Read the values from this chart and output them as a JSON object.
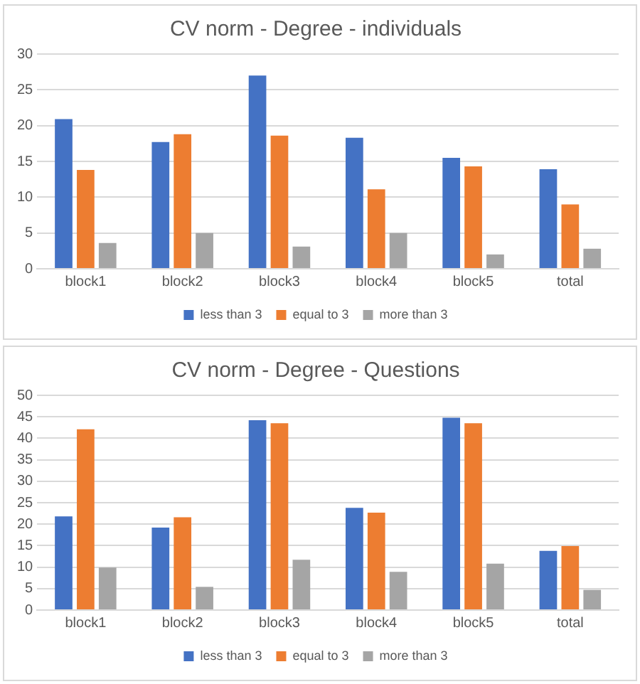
{
  "chart_data": [
    {
      "type": "bar",
      "title": "CV norm - Degree - individuals",
      "categories": [
        "block1",
        "block2",
        "block3",
        "block4",
        "block5",
        "total"
      ],
      "series": [
        {
          "name": "less than 3",
          "color": "#4472c4",
          "values": [
            20.9,
            17.7,
            27.0,
            18.3,
            15.5,
            13.9
          ]
        },
        {
          "name": "equal to 3",
          "color": "#ed7d31",
          "values": [
            13.8,
            18.8,
            18.6,
            11.1,
            14.3,
            9.0
          ]
        },
        {
          "name": "more than 3",
          "color": "#a5a5a5",
          "values": [
            3.6,
            5.0,
            3.1,
            5.0,
            2.0,
            2.8
          ]
        }
      ],
      "ylim": [
        0,
        30
      ],
      "yticks": [
        0,
        5,
        10,
        15,
        20,
        25,
        30
      ],
      "grid": "y",
      "legend": "bottom"
    },
    {
      "type": "bar",
      "title": "CV norm - Degree - Questions",
      "categories": [
        "block1",
        "block2",
        "block3",
        "block4",
        "block5",
        "total"
      ],
      "series": [
        {
          "name": "less than 3",
          "color": "#4472c4",
          "values": [
            21.8,
            19.2,
            44.2,
            23.8,
            44.8,
            13.8
          ]
        },
        {
          "name": "equal to 3",
          "color": "#ed7d31",
          "values": [
            42.1,
            21.6,
            43.5,
            22.7,
            43.5,
            14.9
          ]
        },
        {
          "name": "more than 3",
          "color": "#a5a5a5",
          "values": [
            9.9,
            5.4,
            11.7,
            8.9,
            10.8,
            4.7
          ]
        }
      ],
      "ylim": [
        0,
        50
      ],
      "yticks": [
        0,
        5,
        10,
        15,
        20,
        25,
        30,
        35,
        40,
        45,
        50
      ],
      "grid": "y",
      "legend": "bottom"
    }
  ]
}
